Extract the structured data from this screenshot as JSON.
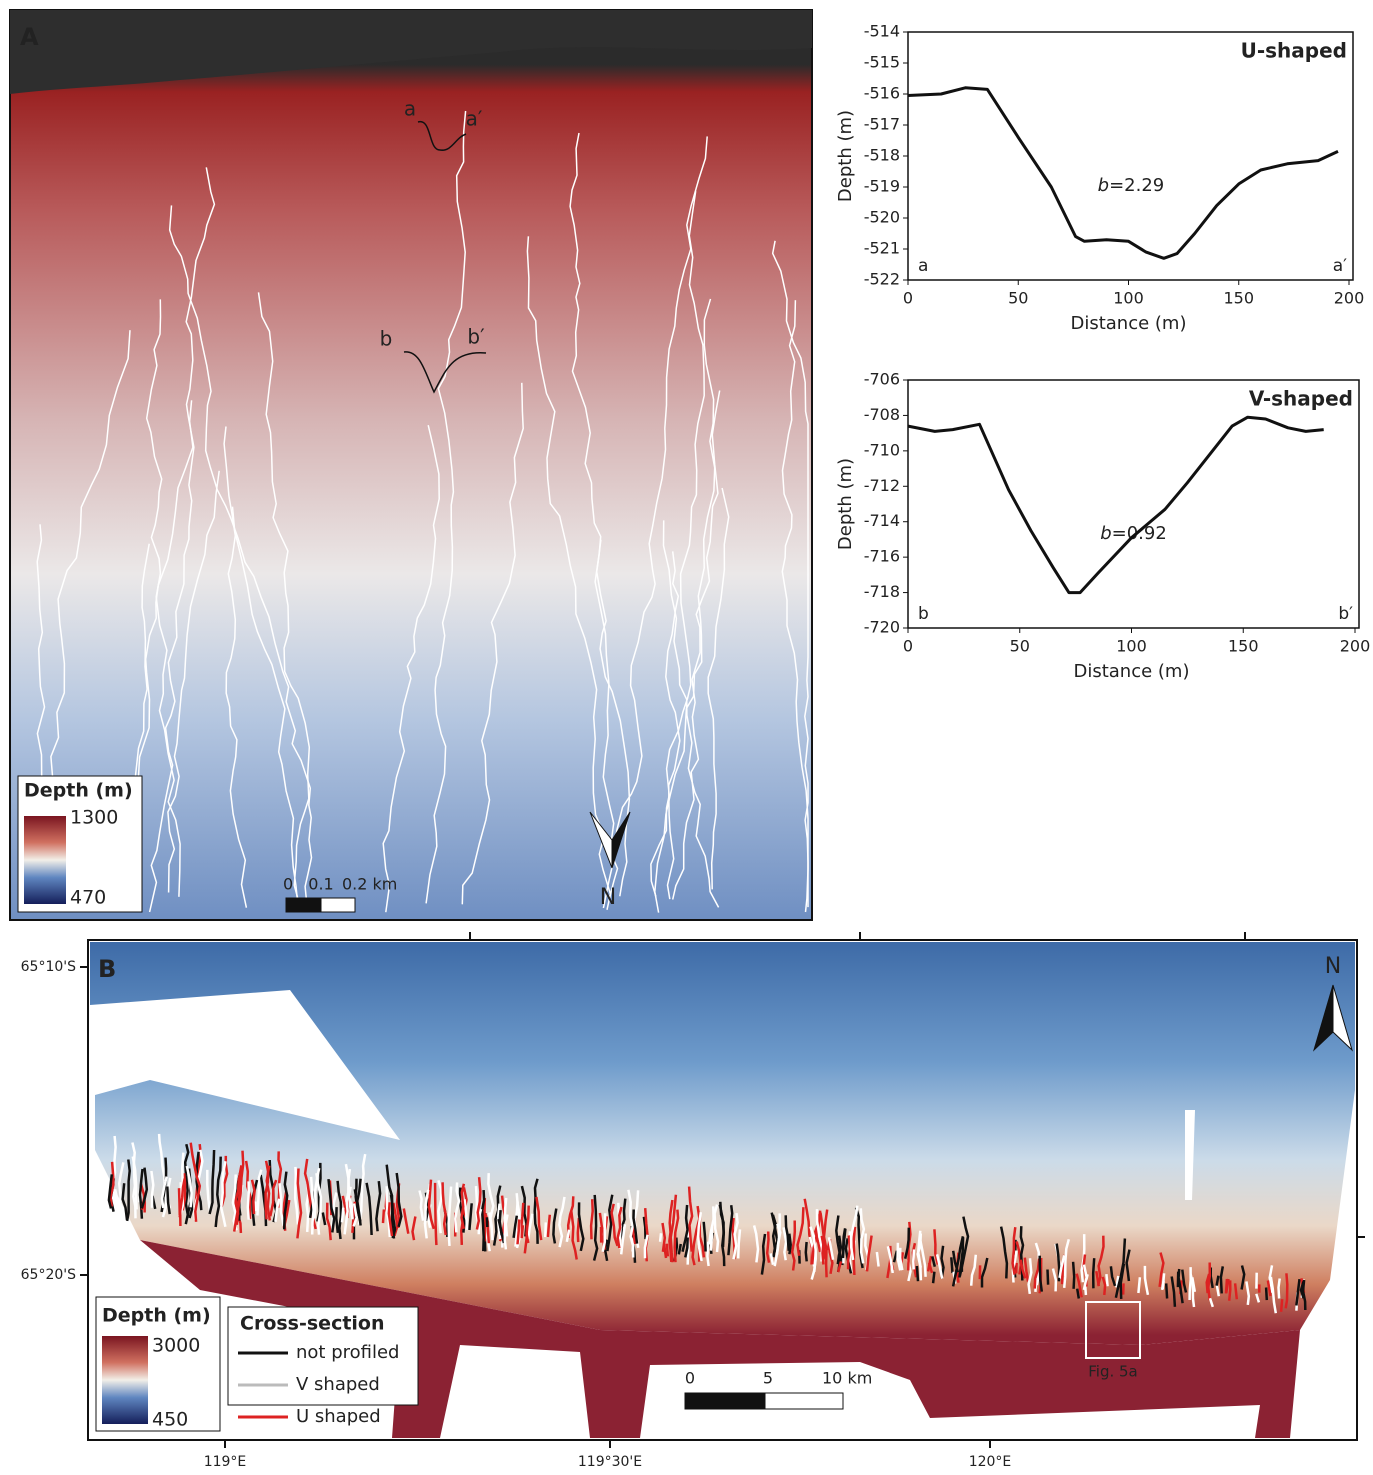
{
  "panel_a": {
    "label": "A",
    "legend_title": "Depth (m)",
    "legend_min": 470,
    "legend_max": 1300,
    "scale_labels": [
      "0",
      "0.1",
      "0.2 km"
    ],
    "north": "N",
    "profile_labels": [
      "a",
      "a′",
      "b",
      "b′"
    ]
  },
  "chart_data": [
    {
      "type": "line",
      "title": "U-shaped",
      "annotation_var": "b",
      "annotation": "=2.29",
      "corner_labels": [
        "a",
        "a′"
      ],
      "x_label": "Distance (m)",
      "y_label": "Depth (m)",
      "color": "#111111",
      "x": [
        0,
        15,
        26,
        36,
        50,
        65,
        76,
        80,
        90,
        100,
        108,
        116,
        122,
        130,
        140,
        150,
        160,
        172,
        186,
        195
      ],
      "values": [
        -516.05,
        -516.0,
        -515.8,
        -515.85,
        -517.4,
        -519.0,
        -520.6,
        -520.75,
        -520.7,
        -520.75,
        -521.1,
        -521.3,
        -521.15,
        -520.5,
        -519.6,
        -518.9,
        -518.45,
        -518.25,
        -518.15,
        -517.85
      ],
      "xlim": [
        0,
        200
      ],
      "xticks": [
        0,
        50,
        100,
        150,
        200
      ],
      "ylim": [
        -522,
        -514
      ],
      "yticks": [
        -522,
        -521,
        -520,
        -519,
        -518,
        -517,
        -516,
        -515,
        -514
      ]
    },
    {
      "type": "line",
      "title": "V-shaped",
      "annotation_var": "b",
      "annotation": "=0.92",
      "corner_labels": [
        "b",
        "b′"
      ],
      "x_label": "Distance (m)",
      "y_label": "Depth (m)",
      "color": "#111111",
      "x": [
        0,
        12,
        20,
        32,
        45,
        55,
        65,
        72,
        77,
        85,
        100,
        115,
        125,
        135,
        145,
        152,
        160,
        170,
        178,
        186
      ],
      "values": [
        -708.6,
        -708.9,
        -708.8,
        -708.5,
        -712.2,
        -714.5,
        -716.6,
        -718.0,
        -718.0,
        -716.9,
        -714.9,
        -713.3,
        -711.8,
        -710.2,
        -708.6,
        -708.1,
        -708.2,
        -708.7,
        -708.9,
        -708.8
      ],
      "xlim": [
        0,
        200
      ],
      "xticks": [
        0,
        50,
        100,
        150,
        200
      ],
      "ylim": [
        -720,
        -706
      ],
      "yticks": [
        -720,
        -718,
        -716,
        -714,
        -712,
        -710,
        -708,
        -706
      ]
    }
  ],
  "panel_b": {
    "label": "B",
    "lat_labels": [
      "65°10'S",
      "65°20'S"
    ],
    "lon_labels": [
      "119°E",
      "119°30'E",
      "120°E"
    ],
    "north": "N",
    "legend_title": "Depth (m)",
    "legend_min": 450,
    "legend_max": 3000,
    "cross_section_title": "Cross-section",
    "cross_section_items": [
      {
        "name": "not profiled",
        "color": "#111111"
      },
      {
        "name": "V shaped",
        "color": "#bbbbbb"
      },
      {
        "name": "U shaped",
        "color": "#dd2222"
      }
    ],
    "box_label": "Fig. 5a",
    "scale_labels": [
      "0",
      "5",
      "10 km"
    ]
  }
}
